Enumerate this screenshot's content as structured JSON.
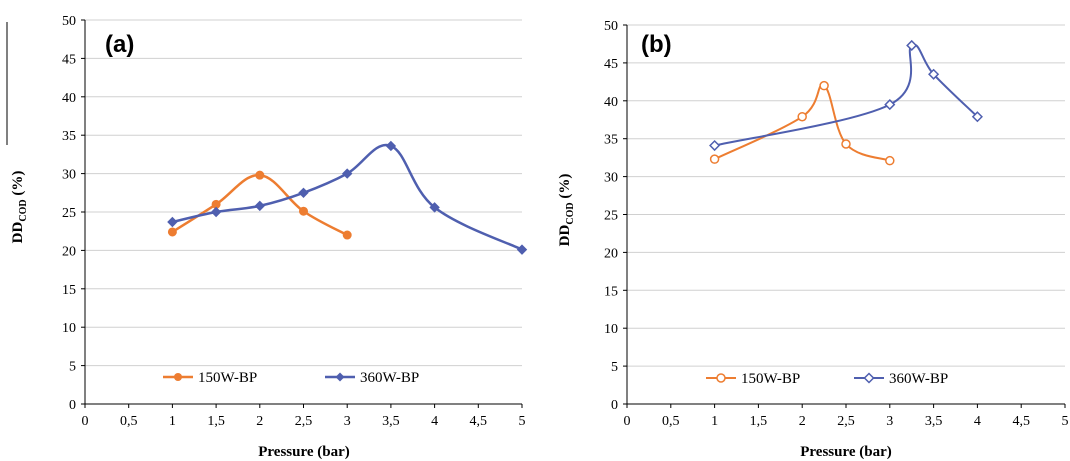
{
  "colors": {
    "series_150": "#ED7D31",
    "series_360": "#4F5FAF"
  },
  "chart_data": [
    {
      "type": "line",
      "panel_label": "(a)",
      "xlabel": "Pressure (bar)",
      "ylabel_main": "DD",
      "ylabel_sub": "COD",
      "ylabel_tail": " (%)",
      "xlim": [
        0,
        5
      ],
      "ylim": [
        0,
        50
      ],
      "xticks": [
        "0",
        "0,5",
        "1",
        "1,5",
        "2",
        "2,5",
        "3",
        "3,5",
        "4",
        "4,5",
        "5"
      ],
      "yticks": [
        "0",
        "5",
        "10",
        "15",
        "20",
        "25",
        "30",
        "35",
        "40",
        "45",
        "50"
      ],
      "grid": true,
      "legend_position": "bottom-left",
      "series": [
        {
          "name": "150W-BP",
          "marker": "circle-filled",
          "x": [
            1,
            1.5,
            2,
            2.5,
            3
          ],
          "y": [
            22.4,
            26.0,
            29.8,
            25.1,
            22.0
          ]
        },
        {
          "name": "360W-BP",
          "marker": "diamond-filled",
          "x": [
            1,
            1.5,
            2,
            2.5,
            3,
            3.5,
            4,
            5
          ],
          "y": [
            23.7,
            25.0,
            25.8,
            27.5,
            30.0,
            33.6,
            25.6,
            20.1
          ]
        }
      ]
    },
    {
      "type": "line",
      "panel_label": "(b)",
      "xlabel": "Pressure (bar)",
      "ylabel_main": "DD",
      "ylabel_sub": "COD",
      "ylabel_tail": " (%)",
      "xlim": [
        0,
        5
      ],
      "ylim": [
        0,
        50
      ],
      "xticks": [
        "0",
        "0,5",
        "1",
        "1,5",
        "2",
        "2,5",
        "3",
        "3,5",
        "4",
        "4,5",
        "5"
      ],
      "yticks": [
        "0",
        "5",
        "10",
        "15",
        "20",
        "25",
        "30",
        "35",
        "40",
        "45",
        "50"
      ],
      "grid": true,
      "legend_position": "bottom-left",
      "series": [
        {
          "name": "150W-BP",
          "marker": "circle-open",
          "x": [
            1,
            2,
            2.25,
            2.5,
            3
          ],
          "y": [
            32.3,
            37.9,
            42.0,
            34.3,
            32.1
          ]
        },
        {
          "name": "360W-BP",
          "marker": "diamond-open",
          "x": [
            1,
            3,
            3.25,
            3.5,
            4
          ],
          "y": [
            34.1,
            39.5,
            47.3,
            43.5,
            37.9
          ]
        }
      ]
    }
  ]
}
